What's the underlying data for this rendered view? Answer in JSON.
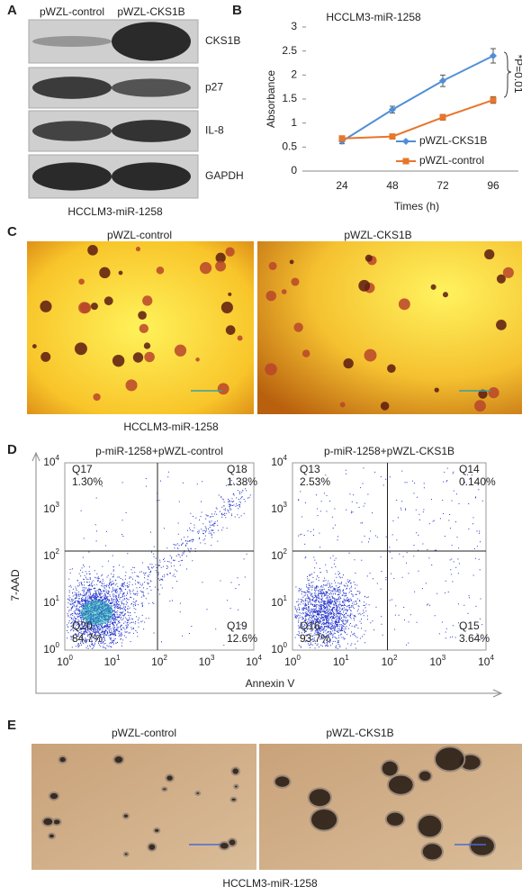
{
  "panel_labels": [
    "A",
    "B",
    "C",
    "D",
    "E"
  ],
  "western": {
    "lanes": [
      "pWZL-control",
      "pWZL-CKS1B"
    ],
    "bands": [
      "CKS1B",
      "p27",
      "IL-8",
      "GAPDH"
    ],
    "caption": "HCCLM3-miR-1258"
  },
  "chart_data": {
    "type": "line",
    "title": "HCCLM3-miR-1258",
    "y_label": "Absorbance",
    "x_label": "Times (h)",
    "annotation": "*P=0.01",
    "categories": [
      "24",
      "48",
      "72",
      "96"
    ],
    "series": [
      {
        "name": "pWZL-CKS1B",
        "color": "#4f8fd6",
        "values": [
          0.62,
          1.28,
          1.88,
          2.4
        ],
        "errors": [
          0.05,
          0.07,
          0.12,
          0.15
        ]
      },
      {
        "name": "pWZL-control",
        "color": "#e8762b",
        "values": [
          0.68,
          0.72,
          1.12,
          1.48
        ],
        "errors": [
          0.04,
          0.03,
          0.06,
          0.07
        ]
      }
    ],
    "ylim": [
      0,
      3
    ],
    "yticks": [
      0,
      0.5,
      1,
      1.5,
      2,
      2.5,
      3
    ],
    "legend": "lower right"
  },
  "colony": {
    "titles": [
      "pWZL-control",
      "pWZL-CKS1B"
    ],
    "caption": "HCCLM3-miR-1258"
  },
  "flow": {
    "titles": [
      "p-miR-1258+pWZL-control",
      "p-miR-1258+pWZL-CKS1B"
    ],
    "y_label": "7-AAD",
    "x_label": "Annexin V",
    "ticks": [
      {
        "base": "10",
        "exponent": "0"
      },
      {
        "base": "10",
        "exponent": "1"
      },
      {
        "base": "10",
        "exponent": "2"
      },
      {
        "base": "10",
        "exponent": "3"
      },
      {
        "base": "10",
        "exponent": "4"
      }
    ],
    "plots": [
      {
        "quadrants": [
          {
            "name": "Q17",
            "percent": "1.30%"
          },
          {
            "name": "Q18",
            "percent": "1.38%"
          },
          {
            "name": "Q20",
            "percent": "84.7%"
          },
          {
            "name": "Q19",
            "percent": "12.6%"
          }
        ]
      },
      {
        "quadrants": [
          {
            "name": "Q13",
            "percent": "2.53%"
          },
          {
            "name": "Q14",
            "percent": "0.140%"
          },
          {
            "name": "Q16",
            "percent": "93.7%"
          },
          {
            "name": "Q15",
            "percent": "3.64%"
          }
        ]
      }
    ]
  },
  "sphere": {
    "titles": [
      "pWZL-control",
      "pWZL-CKS1B"
    ],
    "caption": "HCCLM3-miR-1258"
  }
}
